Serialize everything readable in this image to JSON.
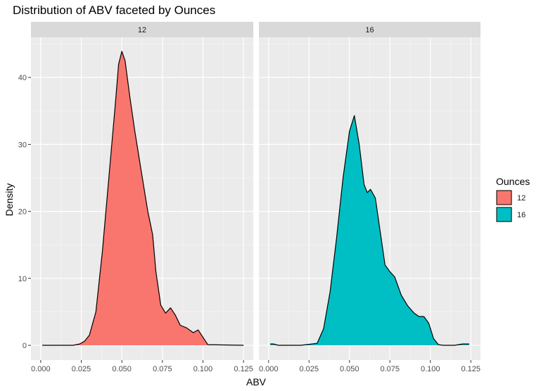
{
  "chart_data": {
    "type": "area",
    "title": "Distribution of ABV faceted by Ounces",
    "xlabel": "ABV",
    "ylabel": "Density",
    "xlim": [
      -0.006,
      0.131
    ],
    "ylim": [
      -2.2,
      46
    ],
    "x_ticks": [
      0.0,
      0.025,
      0.05,
      0.075,
      0.1,
      0.125
    ],
    "x_tick_labels": [
      "0.000",
      "0.025",
      "0.050",
      "0.075",
      "0.100",
      "0.125"
    ],
    "y_ticks": [
      0,
      10,
      20,
      30,
      40
    ],
    "y_tick_labels": [
      "0",
      "10",
      "20",
      "30",
      "40"
    ],
    "grid": true,
    "legend": {
      "title": "Ounces",
      "position": "right",
      "entries": [
        "12",
        "16"
      ]
    },
    "facets": [
      {
        "label": "12",
        "fill": "#F8766D",
        "x": [
          0.001,
          0.02,
          0.024,
          0.027,
          0.03,
          0.034,
          0.038,
          0.042,
          0.046,
          0.048,
          0.05,
          0.052,
          0.055,
          0.058,
          0.062,
          0.066,
          0.069,
          0.071,
          0.074,
          0.077,
          0.08,
          0.083,
          0.086,
          0.09,
          0.094,
          0.097,
          0.1,
          0.103,
          0.125
        ],
        "y": [
          0,
          0,
          0.2,
          0.6,
          1.5,
          5,
          14,
          25,
          36,
          42,
          43.9,
          42.5,
          37,
          32,
          26,
          20,
          16.5,
          11,
          6,
          4.8,
          5.6,
          4.5,
          3,
          2.6,
          1.9,
          2.3,
          1.2,
          0.1,
          0
        ]
      },
      {
        "label": "16",
        "fill": "#00BFC4",
        "x": [
          0.001,
          0.003,
          0.006,
          0.02,
          0.03,
          0.034,
          0.038,
          0.042,
          0.046,
          0.05,
          0.053,
          0.056,
          0.059,
          0.061,
          0.063,
          0.066,
          0.069,
          0.072,
          0.075,
          0.078,
          0.082,
          0.086,
          0.09,
          0.093,
          0.096,
          0.099,
          0.102,
          0.105,
          0.108,
          0.115,
          0.12,
          0.124
        ],
        "y": [
          0.2,
          0.2,
          0,
          0,
          0.3,
          2.5,
          8,
          16,
          25,
          32,
          34.3,
          30,
          24,
          22.8,
          23.3,
          22,
          17,
          12,
          11,
          10.2,
          7.5,
          5.9,
          4.8,
          4.3,
          4.3,
          3.3,
          1,
          0.1,
          0,
          0,
          0.2,
          0.2
        ]
      }
    ]
  }
}
